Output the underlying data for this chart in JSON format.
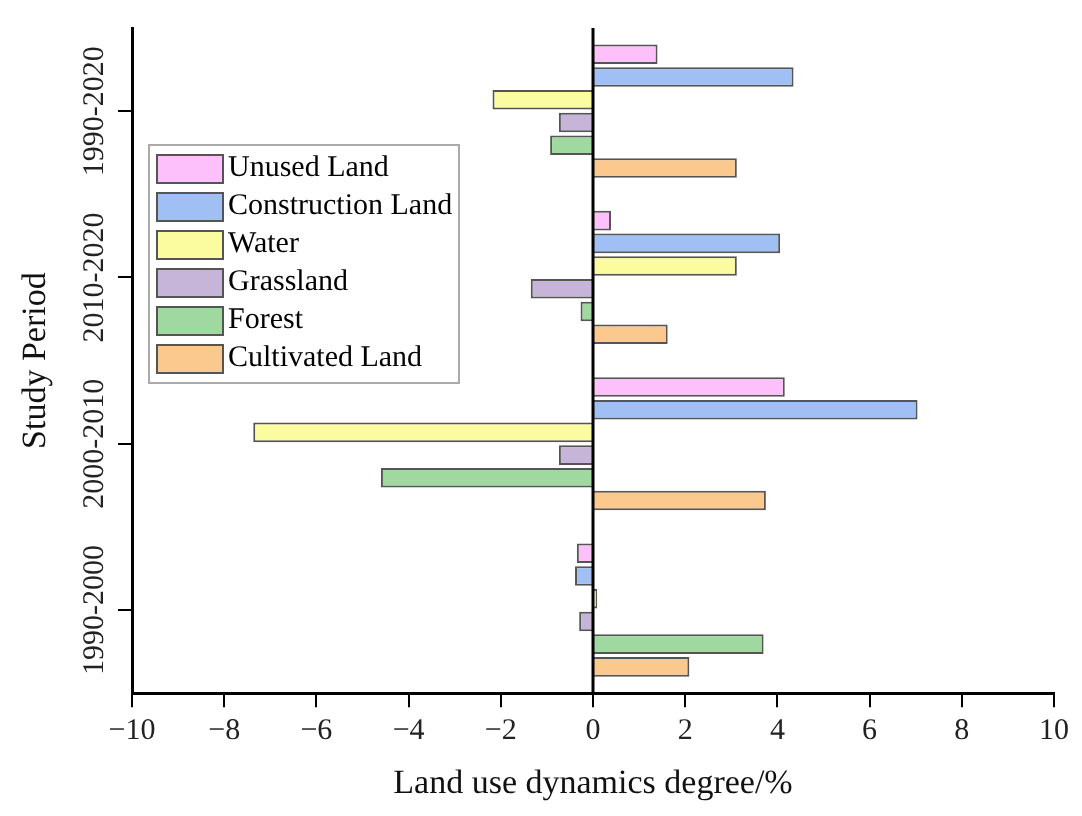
{
  "chart_data": {
    "type": "bar",
    "orientation": "horizontal",
    "xlabel": "Land use dynamics degree/%",
    "ylabel": "Study Period",
    "categories": [
      "1990-2020",
      "2010-2020",
      "2000-2010",
      "1990-2000"
    ],
    "series": [
      {
        "name": "Unused Land",
        "color": "#fdc0fa",
        "values": [
          1.4,
          0.39,
          4.16,
          -0.35
        ]
      },
      {
        "name": "Construction Land",
        "color": "#a0bff5",
        "values": [
          4.35,
          4.06,
          7.04,
          -0.39
        ]
      },
      {
        "name": "Water",
        "color": "#fbfba0",
        "values": [
          -2.18,
          3.12,
          -7.37,
          0.09
        ]
      },
      {
        "name": "Grassland",
        "color": "#c6b4d9",
        "values": [
          -0.74,
          -1.35,
          -0.74,
          -0.3
        ]
      },
      {
        "name": "Forest",
        "color": "#9fd99f",
        "values": [
          -0.93,
          -0.27,
          -4.6,
          3.7
        ]
      },
      {
        "name": "Cultivated Land",
        "color": "#fbc98e",
        "values": [
          3.12,
          1.62,
          3.75,
          2.09
        ]
      }
    ],
    "xlim": [
      -10,
      10
    ],
    "xticks": [
      -10,
      -8,
      -6,
      -4,
      -2,
      0,
      2,
      4,
      6,
      8,
      10
    ],
    "ref_lines": [
      {
        "axis": "x",
        "value": 0,
        "color": "#000000"
      }
    ],
    "grid": false,
    "legend": "top left"
  }
}
